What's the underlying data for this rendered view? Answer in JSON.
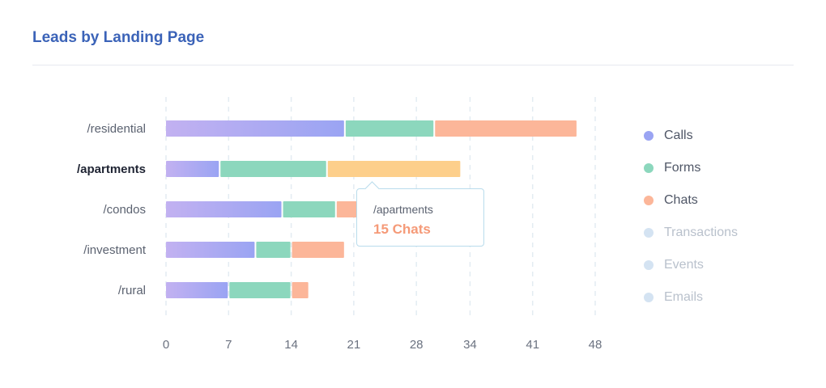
{
  "title": "Leads by Landing Page",
  "chart_data": {
    "type": "bar",
    "orientation": "horizontal",
    "stacked": true,
    "title": "Leads by Landing Page",
    "categories": [
      "/residential",
      "/apartments",
      "/condos",
      "/investment",
      "/rural"
    ],
    "highlighted_category": "/apartments",
    "series": [
      {
        "name": "Calls",
        "color": "#9aa4f3",
        "gradient_from": "#c2b1f1",
        "values": [
          20,
          6,
          13,
          10,
          7
        ]
      },
      {
        "name": "Forms",
        "color": "#8cd7bd",
        "values": [
          10,
          12,
          6,
          4,
          7
        ]
      },
      {
        "name": "Chats",
        "color": "#fcb699",
        "values": [
          16,
          15,
          4,
          6,
          2
        ]
      }
    ],
    "inactive_series": [
      {
        "name": "Transactions",
        "color": "#d4e3f2"
      },
      {
        "name": "Events",
        "color": "#d4e3f2"
      },
      {
        "name": "Emails",
        "color": "#d4e3f2"
      }
    ],
    "xticks": [
      "0",
      "7",
      "14",
      "21",
      "28",
      "34",
      "41",
      "48"
    ],
    "xlim": [
      0,
      48
    ],
    "grid": "vertical dashed",
    "legend_position": "right"
  },
  "tooltip": {
    "label": "/apartments",
    "value": "15 Chats",
    "color": "#f59a78",
    "highlight_fill": "#fdcf8b"
  }
}
